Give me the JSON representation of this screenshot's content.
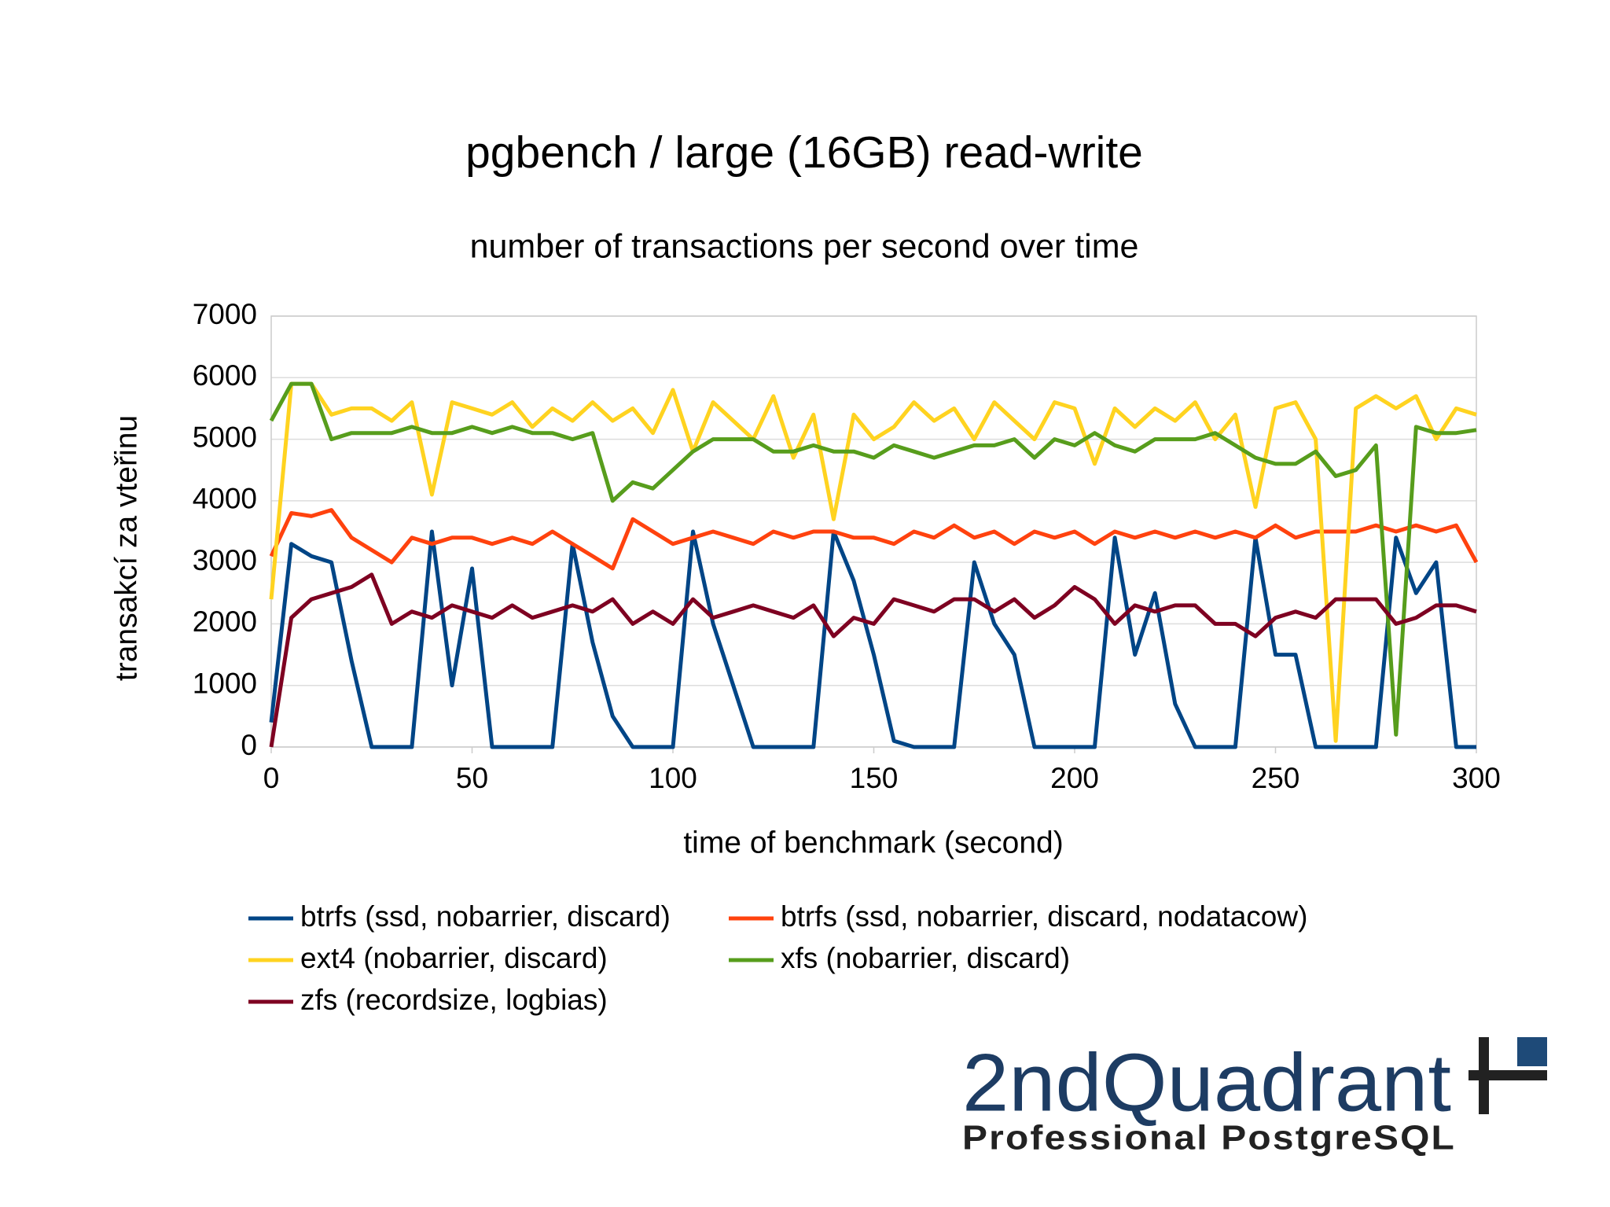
{
  "chart_data": {
    "type": "line",
    "title": "pgbench / large (16GB) read-write",
    "subtitle": "number of transactions per second over time",
    "x_label": "time of benchmark (second)",
    "y_label": "transakcí za vteřinu",
    "x": [
      0,
      5,
      10,
      15,
      20,
      25,
      30,
      35,
      40,
      45,
      50,
      55,
      60,
      65,
      70,
      75,
      80,
      85,
      90,
      95,
      100,
      105,
      110,
      115,
      120,
      125,
      130,
      135,
      140,
      145,
      150,
      155,
      160,
      165,
      170,
      175,
      180,
      185,
      190,
      195,
      200,
      205,
      210,
      215,
      220,
      225,
      230,
      235,
      240,
      245,
      250,
      255,
      260,
      265,
      270,
      275,
      280,
      285,
      290,
      295,
      300
    ],
    "series": [
      {
        "name": "btrfs (ssd, nobarrier, discard)",
        "color": "#004586",
        "values": [
          400,
          3300,
          3100,
          3000,
          1400,
          0,
          0,
          0,
          3500,
          1000,
          2900,
          0,
          0,
          0,
          0,
          3300,
          1700,
          500,
          0,
          0,
          0,
          3500,
          2000,
          1000,
          0,
          0,
          0,
          0,
          3500,
          2700,
          1500,
          100,
          0,
          0,
          0,
          3000,
          2000,
          1500,
          0,
          0,
          0,
          0,
          3400,
          1500,
          2500,
          700,
          0,
          0,
          0,
          3400,
          1500,
          1500,
          0,
          0,
          0,
          0,
          3400,
          2500,
          3000,
          0,
          0
        ]
      },
      {
        "name": "btrfs (ssd, nobarrier, discard, nodatacow)",
        "color": "#ff420e",
        "values": [
          3100,
          3800,
          3750,
          3850,
          3400,
          3200,
          3000,
          3400,
          3300,
          3400,
          3400,
          3300,
          3400,
          3300,
          3500,
          3300,
          3100,
          2900,
          3700,
          3500,
          3300,
          3400,
          3500,
          3400,
          3300,
          3500,
          3400,
          3500,
          3500,
          3400,
          3400,
          3300,
          3500,
          3400,
          3600,
          3400,
          3500,
          3300,
          3500,
          3400,
          3500,
          3300,
          3500,
          3400,
          3500,
          3400,
          3500,
          3400,
          3500,
          3400,
          3600,
          3400,
          3500,
          3500,
          3500,
          3600,
          3500,
          3600,
          3500,
          3600,
          3000
        ]
      },
      {
        "name": "ext4 (nobarrier, discard)",
        "color": "#ffd320",
        "values": [
          2400,
          5900,
          5900,
          5400,
          5500,
          5500,
          5300,
          5600,
          4100,
          5600,
          5500,
          5400,
          5600,
          5200,
          5500,
          5300,
          5600,
          5300,
          5500,
          5100,
          5800,
          4800,
          5600,
          5300,
          5000,
          5700,
          4700,
          5400,
          3700,
          5400,
          5000,
          5200,
          5600,
          5300,
          5500,
          5000,
          5600,
          5300,
          5000,
          5600,
          5500,
          4600,
          5500,
          5200,
          5500,
          5300,
          5600,
          5000,
          5400,
          3900,
          5500,
          5600,
          5000,
          100,
          5500,
          5700,
          5500,
          5700,
          5000,
          5500,
          5400
        ]
      },
      {
        "name": "xfs (nobarrier, discard)",
        "color": "#579d1c",
        "values": [
          5300,
          5900,
          5900,
          5000,
          5100,
          5100,
          5100,
          5200,
          5100,
          5100,
          5200,
          5100,
          5200,
          5100,
          5100,
          5000,
          5100,
          4000,
          4300,
          4200,
          4500,
          4800,
          5000,
          5000,
          5000,
          4800,
          4800,
          4900,
          4800,
          4800,
          4700,
          4900,
          4800,
          4700,
          4800,
          4900,
          4900,
          5000,
          4700,
          5000,
          4900,
          5100,
          4900,
          4800,
          5000,
          5000,
          5000,
          5100,
          4900,
          4700,
          4600,
          4600,
          4800,
          4400,
          4500,
          4900,
          200,
          5200,
          5100,
          5100,
          5150
        ]
      },
      {
        "name": "zfs (recordsize, logbias)",
        "color": "#7e0021",
        "values": [
          0,
          2100,
          2400,
          2500,
          2600,
          2800,
          2000,
          2200,
          2100,
          2300,
          2200,
          2100,
          2300,
          2100,
          2200,
          2300,
          2200,
          2400,
          2000,
          2200,
          2000,
          2400,
          2100,
          2200,
          2300,
          2200,
          2100,
          2300,
          1800,
          2100,
          2000,
          2400,
          2300,
          2200,
          2400,
          2400,
          2200,
          2400,
          2100,
          2300,
          2600,
          2400,
          2000,
          2300,
          2200,
          2300,
          2300,
          2000,
          2000,
          1800,
          2100,
          2200,
          2100,
          2400,
          2400,
          2400,
          2000,
          2100,
          2300,
          2300,
          2200
        ]
      }
    ],
    "xlim": [
      0,
      300
    ],
    "xticks": [
      0,
      50,
      100,
      150,
      200,
      250,
      300
    ],
    "ylim": [
      0,
      7000
    ],
    "yticks": [
      0,
      1000,
      2000,
      3000,
      4000,
      5000,
      6000,
      7000
    ],
    "grid": true,
    "legend": "bottom"
  },
  "logo": {
    "name": "2ndQuadrant",
    "tagline": "Professional PostgreSQL"
  }
}
